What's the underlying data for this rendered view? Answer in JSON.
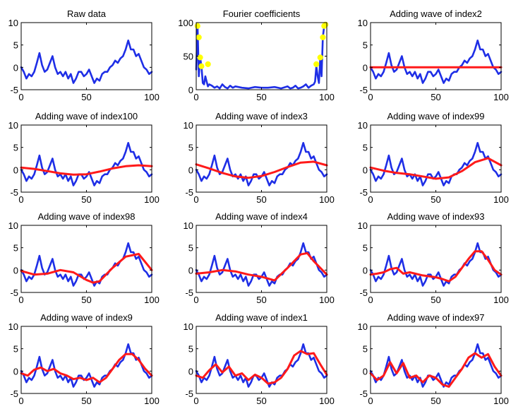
{
  "colors": {
    "raw": "#1e2ee6",
    "fit": "#ff1a1a",
    "marker": "#ffff00",
    "axis": "#000000",
    "background": "#ffffff"
  },
  "chart_data": [
    {
      "type": "line",
      "title": "Raw data",
      "xlim": [
        0,
        100
      ],
      "ylim": [
        -5,
        10
      ],
      "xticks": [
        0,
        50,
        100
      ],
      "yticks": [
        -5,
        0,
        5,
        10
      ],
      "grid": false,
      "series": [
        {
          "role": "raw",
          "x": [
            0,
            2,
            4,
            6,
            8,
            10,
            12,
            14,
            16,
            18,
            20,
            22,
            24,
            26,
            28,
            30,
            32,
            34,
            36,
            38,
            40,
            42,
            44,
            46,
            48,
            50,
            52,
            54,
            56,
            58,
            60,
            62,
            64,
            66,
            68,
            70,
            72,
            74,
            76,
            78,
            80,
            82,
            84,
            86,
            88,
            90,
            92,
            94,
            96,
            98,
            100
          ],
          "values": [
            0,
            -1,
            -2.5,
            -1.5,
            -2,
            -1,
            1,
            3.2,
            0.5,
            -1,
            -0.5,
            1,
            2.5,
            0,
            -1.5,
            -1,
            -2,
            -1,
            -2.5,
            -1.5,
            -3.5,
            -2.5,
            -1,
            -1,
            -2,
            -1.5,
            -0.5,
            -2,
            -3.5,
            -2.5,
            -3,
            -1.5,
            -1,
            -1,
            0,
            0.5,
            1.5,
            1,
            2,
            2.5,
            4,
            6,
            4,
            4,
            2.5,
            3,
            1.5,
            0,
            -0.5,
            -1.5,
            -1
          ]
        }
      ]
    },
    {
      "type": "line",
      "title": "Fourier coefficients",
      "xlim": [
        0,
        100
      ],
      "ylim": [
        0,
        100
      ],
      "xticks": [
        0,
        50,
        100
      ],
      "yticks": [
        0,
        50,
        100
      ],
      "grid": false,
      "series": [
        {
          "role": "raw",
          "x": [
            0,
            1,
            2,
            3,
            4,
            5,
            6,
            7,
            8,
            9,
            10,
            12,
            14,
            16,
            18,
            20,
            22,
            24,
            26,
            28,
            30,
            35,
            40,
            45,
            50,
            55,
            60,
            65,
            70,
            72,
            74,
            76,
            78,
            80,
            82,
            84,
            86,
            88,
            90,
            91,
            92,
            93,
            94,
            95,
            96,
            97,
            98,
            99,
            100
          ],
          "values": [
            30,
            95,
            20,
            48,
            35,
            10,
            8,
            20,
            12,
            5,
            8,
            6,
            3,
            5,
            2,
            8,
            4,
            2,
            6,
            3,
            5,
            3,
            2,
            4,
            3,
            3,
            4,
            2,
            5,
            2,
            3,
            6,
            2,
            3,
            5,
            8,
            3,
            6,
            8,
            12,
            35,
            20,
            10,
            48,
            20,
            78,
            95,
            97,
            98
          ]
        },
        {
          "role": "marker",
          "x": [
            1,
            2,
            3,
            4,
            9,
            92,
            95,
            97,
            98,
            99
          ],
          "values": [
            95,
            78,
            48,
            35,
            38,
            38,
            48,
            78,
            95,
            97
          ]
        }
      ]
    },
    {
      "type": "line",
      "title": "Adding wave of index2",
      "xlim": [
        0,
        100
      ],
      "ylim": [
        -5,
        10
      ],
      "xticks": [
        0,
        50,
        100
      ],
      "yticks": [
        -5,
        0,
        5,
        10
      ],
      "grid": false,
      "series": [
        {
          "role": "raw",
          "ref": "raw"
        },
        {
          "role": "fit",
          "x": [
            0,
            100
          ],
          "values": [
            0,
            0
          ]
        }
      ]
    },
    {
      "type": "line",
      "title": "Adding wave of index100",
      "xlim": [
        0,
        100
      ],
      "ylim": [
        -5,
        10
      ],
      "xticks": [
        0,
        50,
        100
      ],
      "yticks": [
        -5,
        0,
        5,
        10
      ],
      "grid": false,
      "series": [
        {
          "role": "raw",
          "ref": "raw"
        },
        {
          "role": "fit",
          "x": [
            0,
            10,
            20,
            30,
            40,
            50,
            60,
            70,
            80,
            90,
            100
          ],
          "values": [
            0.5,
            0.2,
            -0.3,
            -0.8,
            -1.1,
            -1,
            -0.4,
            0.3,
            0.8,
            1,
            0.8
          ]
        }
      ]
    },
    {
      "type": "line",
      "title": "Adding wave of index3",
      "xlim": [
        0,
        100
      ],
      "ylim": [
        -5,
        10
      ],
      "xticks": [
        0,
        50,
        100
      ],
      "yticks": [
        -5,
        0,
        5,
        10
      ],
      "grid": false,
      "series": [
        {
          "role": "raw",
          "ref": "raw"
        },
        {
          "role": "fit",
          "x": [
            0,
            10,
            20,
            30,
            40,
            50,
            60,
            70,
            80,
            90,
            100
          ],
          "values": [
            1.2,
            0.3,
            -0.7,
            -1.5,
            -1.8,
            -1.4,
            -0.5,
            0.6,
            1.6,
            1.8,
            1
          ]
        }
      ]
    },
    {
      "type": "line",
      "title": "Adding wave of index99",
      "xlim": [
        0,
        100
      ],
      "ylim": [
        -5,
        10
      ],
      "xticks": [
        0,
        50,
        100
      ],
      "yticks": [
        -5,
        0,
        5,
        10
      ],
      "grid": false,
      "series": [
        {
          "role": "raw",
          "ref": "raw"
        },
        {
          "role": "fit",
          "x": [
            0,
            10,
            20,
            30,
            40,
            50,
            60,
            70,
            80,
            90,
            100
          ],
          "values": [
            0.5,
            -0.2,
            -0.7,
            -1,
            -1.5,
            -2,
            -1.7,
            -0.3,
            1.7,
            2.6,
            1
          ]
        }
      ]
    },
    {
      "type": "line",
      "title": "Adding wave of index98",
      "xlim": [
        0,
        100
      ],
      "ylim": [
        -5,
        10
      ],
      "xticks": [
        0,
        50,
        100
      ],
      "yticks": [
        -5,
        0,
        5,
        10
      ],
      "grid": false,
      "series": [
        {
          "role": "raw",
          "ref": "raw"
        },
        {
          "role": "fit",
          "x": [
            0,
            10,
            20,
            30,
            40,
            50,
            55,
            60,
            70,
            80,
            90,
            100
          ],
          "values": [
            -0.2,
            -1,
            -0.8,
            0,
            -0.5,
            -2.2,
            -2.8,
            -2.5,
            0.5,
            3,
            3.6,
            0
          ]
        }
      ]
    },
    {
      "type": "line",
      "title": "Adding wave of index4",
      "xlim": [
        0,
        100
      ],
      "ylim": [
        -5,
        10
      ],
      "xticks": [
        0,
        50,
        100
      ],
      "yticks": [
        -5,
        0,
        5,
        10
      ],
      "grid": false,
      "series": [
        {
          "role": "raw",
          "ref": "raw"
        },
        {
          "role": "fit",
          "x": [
            0,
            10,
            20,
            30,
            40,
            50,
            60,
            70,
            80,
            85,
            90,
            100
          ],
          "values": [
            -0.8,
            -0.5,
            0,
            -0.3,
            -1,
            -1.5,
            -2.3,
            0.5,
            3.5,
            3.8,
            2,
            -1
          ]
        }
      ]
    },
    {
      "type": "line",
      "title": "Adding wave of index93",
      "xlim": [
        0,
        100
      ],
      "ylim": [
        -5,
        10
      ],
      "xticks": [
        0,
        50,
        100
      ],
      "yticks": [
        -5,
        0,
        5,
        10
      ],
      "grid": false,
      "series": [
        {
          "role": "raw",
          "ref": "raw"
        },
        {
          "role": "fit",
          "x": [
            0,
            5,
            10,
            15,
            20,
            25,
            30,
            40,
            50,
            55,
            60,
            65,
            70,
            75,
            80,
            85,
            90,
            95,
            100
          ],
          "values": [
            -1,
            -0.8,
            -0.5,
            0.2,
            0.5,
            -0.8,
            -0.5,
            -1.2,
            -1.6,
            -2,
            -2.5,
            -1.5,
            0.5,
            2.5,
            4.2,
            4.2,
            2.3,
            0,
            -1
          ]
        }
      ]
    },
    {
      "type": "line",
      "title": "Adding wave of index9",
      "xlim": [
        0,
        100
      ],
      "ylim": [
        -5,
        10
      ],
      "xticks": [
        0,
        50,
        100
      ],
      "yticks": [
        -5,
        0,
        5,
        10
      ],
      "grid": false,
      "series": [
        {
          "role": "raw",
          "ref": "raw"
        },
        {
          "role": "fit",
          "x": [
            0,
            5,
            10,
            15,
            20,
            25,
            30,
            35,
            40,
            45,
            50,
            55,
            60,
            65,
            70,
            75,
            80,
            85,
            90,
            95,
            100
          ],
          "values": [
            -0.5,
            -1,
            0.3,
            0.8,
            0,
            0.5,
            -0.5,
            -1,
            -1.8,
            -1.5,
            -2,
            -1.5,
            -2.5,
            -1.5,
            0.5,
            2.5,
            3.8,
            3.8,
            2.5,
            0.5,
            -1
          ]
        }
      ]
    },
    {
      "type": "line",
      "title": "Adding wave of index1",
      "xlim": [
        0,
        100
      ],
      "ylim": [
        -5,
        10
      ],
      "xticks": [
        0,
        50,
        100
      ],
      "yticks": [
        -5,
        0,
        5,
        10
      ],
      "grid": false,
      "series": [
        {
          "role": "raw",
          "ref": "raw"
        },
        {
          "role": "fit",
          "x": [
            0,
            5,
            10,
            15,
            20,
            25,
            30,
            35,
            40,
            45,
            50,
            55,
            60,
            65,
            70,
            75,
            80,
            85,
            90,
            95,
            100
          ],
          "values": [
            -1,
            -1.5,
            0.2,
            1.5,
            -0.3,
            1,
            -1,
            -0.5,
            -2,
            -0.8,
            -1.5,
            -2.8,
            -2.5,
            -1.5,
            0.5,
            3.5,
            4.5,
            3.8,
            4,
            1.5,
            -0.8
          ]
        }
      ]
    },
    {
      "type": "line",
      "title": "Adding wave of index97",
      "xlim": [
        0,
        100
      ],
      "ylim": [
        -5,
        10
      ],
      "xticks": [
        0,
        50,
        100
      ],
      "yticks": [
        -5,
        0,
        5,
        10
      ],
      "grid": false,
      "series": [
        {
          "role": "raw",
          "ref": "raw"
        },
        {
          "role": "fit",
          "x": [
            0,
            5,
            10,
            15,
            20,
            25,
            30,
            35,
            40,
            45,
            50,
            55,
            60,
            65,
            70,
            75,
            80,
            85,
            90,
            95,
            100
          ],
          "values": [
            -0.5,
            -2,
            -1,
            2,
            -0.5,
            1.8,
            -1.5,
            -1,
            -2.5,
            -1,
            -1.5,
            -3,
            -3.5,
            -1.5,
            0.5,
            3,
            4,
            3,
            3.8,
            1,
            -1
          ]
        }
      ]
    }
  ]
}
